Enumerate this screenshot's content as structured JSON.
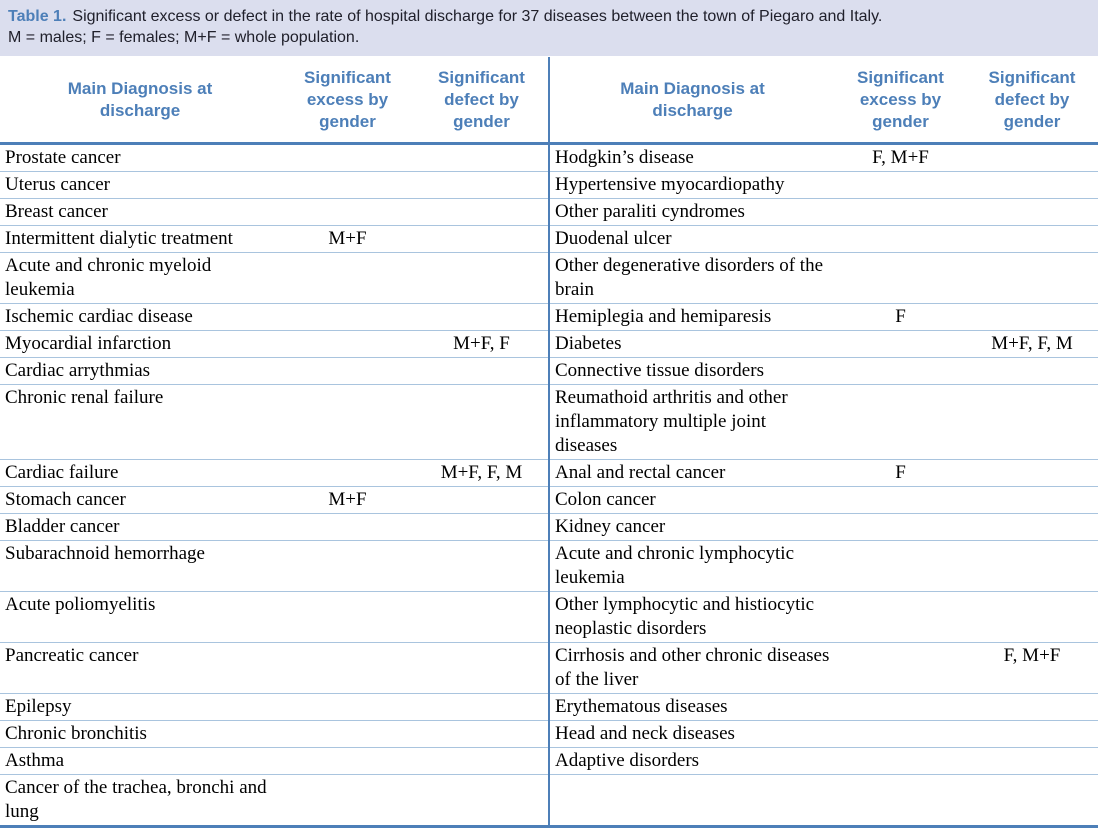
{
  "caption": {
    "label": "Table 1.",
    "line1": "Significant excess or defect in the rate of hospital discharge for 37 diseases between the town of Piegaro and Italy.",
    "line2": "M = males; F = females; M+F = whole population."
  },
  "columns": {
    "diagnosis": "Main Diagnosis at discharge",
    "excess": "Significant excess by gender",
    "defect": "Significant defect by gender"
  },
  "colors": {
    "accent_blue": "#4d7fb8",
    "row_line_blue": "#a9c4de",
    "caption_band": "#dbdeee",
    "body_text": "#000000"
  },
  "rows": [
    {
      "left": {
        "diagnosis": "Prostate cancer",
        "excess": "",
        "defect": ""
      },
      "right": {
        "diagnosis": "Hodgkin’s disease",
        "excess": "F, M+F",
        "defect": ""
      }
    },
    {
      "left": {
        "diagnosis": "Uterus cancer",
        "excess": "",
        "defect": ""
      },
      "right": {
        "diagnosis": "Hypertensive myocardiopathy",
        "excess": "",
        "defect": ""
      }
    },
    {
      "left": {
        "diagnosis": "Breast cancer",
        "excess": "",
        "defect": ""
      },
      "right": {
        "diagnosis": "Other paraliti cyndromes",
        "excess": "",
        "defect": ""
      }
    },
    {
      "left": {
        "diagnosis": "Intermittent dialytic treatment",
        "excess": "M+F",
        "defect": ""
      },
      "right": {
        "diagnosis": "Duodenal ulcer",
        "excess": "",
        "defect": ""
      }
    },
    {
      "left": {
        "diagnosis": "Acute and chronic myeloid leukemia",
        "excess": "",
        "defect": ""
      },
      "right": {
        "diagnosis": "Other degenerative disorders of the brain",
        "excess": "",
        "defect": ""
      }
    },
    {
      "left": {
        "diagnosis": "Ischemic cardiac disease",
        "excess": "",
        "defect": ""
      },
      "right": {
        "diagnosis": "Hemiplegia and hemiparesis",
        "excess": "F",
        "defect": ""
      }
    },
    {
      "left": {
        "diagnosis": "Myocardial infarction",
        "excess": "",
        "defect": "M+F, F"
      },
      "right": {
        "diagnosis": "Diabetes",
        "excess": "",
        "defect": "M+F, F, M"
      }
    },
    {
      "left": {
        "diagnosis": "Cardiac arrythmias",
        "excess": "",
        "defect": ""
      },
      "right": {
        "diagnosis": "Connective tissue disorders",
        "excess": "",
        "defect": ""
      }
    },
    {
      "left": {
        "diagnosis": "Chronic renal failure",
        "excess": "",
        "defect": ""
      },
      "right": {
        "diagnosis": "Reumathoid arthritis and other inflammatory  multiple joint diseases",
        "excess": "",
        "defect": ""
      }
    },
    {
      "left": {
        "diagnosis": "Cardiac failure",
        "excess": "",
        "defect": "M+F, F, M"
      },
      "right": {
        "diagnosis": "Anal and rectal cancer",
        "excess": "F",
        "defect": ""
      }
    },
    {
      "left": {
        "diagnosis": "Stomach cancer",
        "excess": "M+F",
        "defect": ""
      },
      "right": {
        "diagnosis": "Colon cancer",
        "excess": "",
        "defect": ""
      }
    },
    {
      "left": {
        "diagnosis": "Bladder cancer",
        "excess": "",
        "defect": ""
      },
      "right": {
        "diagnosis": "Kidney cancer",
        "excess": "",
        "defect": ""
      }
    },
    {
      "left": {
        "diagnosis": "Subarachnoid hemorrhage",
        "excess": "",
        "defect": ""
      },
      "right": {
        "diagnosis": "Acute and chronic lymphocytic leukemia",
        "excess": "",
        "defect": ""
      }
    },
    {
      "left": {
        "diagnosis": "Acute poliomyelitis",
        "excess": "",
        "defect": ""
      },
      "right": {
        "diagnosis": "Other lymphocytic and histiocytic neoplastic disorders",
        "excess": "",
        "defect": ""
      }
    },
    {
      "left": {
        "diagnosis": "Pancreatic cancer",
        "excess": "",
        "defect": ""
      },
      "right": {
        "diagnosis": "Cirrhosis and other chronic diseases of the liver",
        "excess": "",
        "defect": "F, M+F"
      }
    },
    {
      "left": {
        "diagnosis": "Epilepsy",
        "excess": "",
        "defect": ""
      },
      "right": {
        "diagnosis": "Erythematous diseases",
        "excess": "",
        "defect": ""
      }
    },
    {
      "left": {
        "diagnosis": "Chronic bronchitis",
        "excess": "",
        "defect": ""
      },
      "right": {
        "diagnosis": "Head and neck diseases",
        "excess": "",
        "defect": ""
      }
    },
    {
      "left": {
        "diagnosis": "Asthma",
        "excess": "",
        "defect": ""
      },
      "right": {
        "diagnosis": "Adaptive disorders",
        "excess": "",
        "defect": ""
      }
    },
    {
      "left": {
        "diagnosis": "Cancer of the trachea, bronchi and lung",
        "excess": "",
        "defect": ""
      },
      "right": {
        "diagnosis": "",
        "excess": "",
        "defect": ""
      }
    }
  ]
}
